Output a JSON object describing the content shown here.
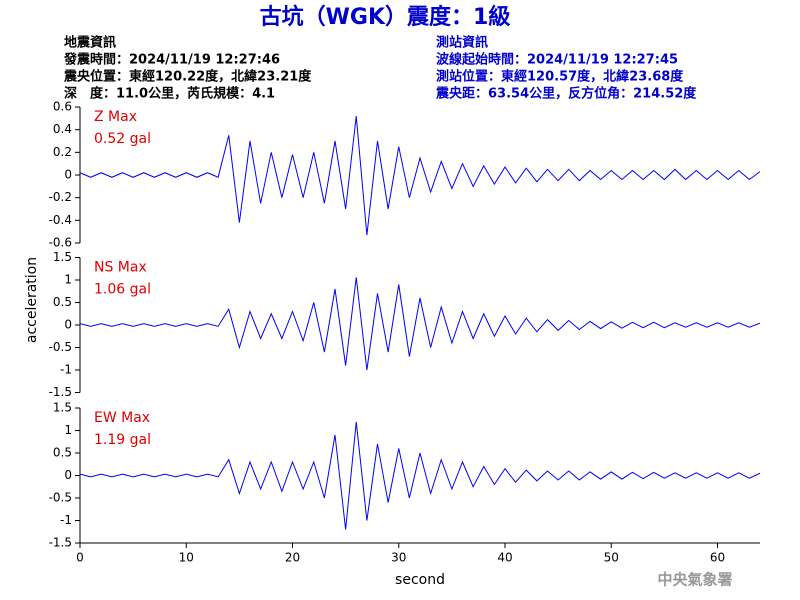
{
  "header": {
    "title": "古坑（WGK）震度：1級",
    "left": [
      "地震資訊",
      "發震時間：2024/11/19 12:27:46",
      "震央位置：東經120.22度，北緯23.21度",
      "深　度：11.0公里，芮氏規模：4.1"
    ],
    "right": [
      "測站資訊",
      "波線起始時間：2024/11/19 12:27:45",
      "測站位置：東經120.57度，北緯23.68度",
      "震央距：63.54公里，反方位角：214.52度"
    ],
    "footer": "中央氣象署"
  },
  "chart_data": [
    {
      "type": "line",
      "annotation": "Z Max",
      "max_label": "0.52 gal",
      "color": "#0000ff",
      "x": [
        0,
        1,
        2,
        3,
        4,
        5,
        6,
        7,
        8,
        9,
        10,
        11,
        12,
        13,
        14,
        15,
        16,
        17,
        18,
        19,
        20,
        21,
        22,
        23,
        24,
        25,
        26,
        27,
        28,
        29,
        30,
        31,
        32,
        33,
        34,
        35,
        36,
        37,
        38,
        39,
        40,
        41,
        42,
        43,
        44,
        45,
        46,
        47,
        48,
        49,
        50,
        51,
        52,
        53,
        54,
        55,
        56,
        57,
        58,
        59,
        60,
        61,
        62,
        63,
        64
      ],
      "values": [
        0.02,
        -0.02,
        0.02,
        -0.02,
        0.02,
        -0.02,
        0.02,
        -0.02,
        0.02,
        -0.02,
        0.02,
        -0.02,
        0.02,
        -0.02,
        0.35,
        -0.42,
        0.3,
        -0.25,
        0.2,
        -0.2,
        0.18,
        -0.2,
        0.2,
        -0.25,
        0.3,
        -0.3,
        0.52,
        -0.53,
        0.3,
        -0.3,
        0.25,
        -0.2,
        0.15,
        -0.15,
        0.12,
        -0.12,
        0.1,
        -0.1,
        0.08,
        -0.08,
        0.07,
        -0.07,
        0.06,
        -0.06,
        0.05,
        -0.05,
        0.05,
        -0.05,
        0.04,
        -0.04,
        0.04,
        -0.04,
        0.04,
        -0.04,
        0.04,
        -0.04,
        0.05,
        -0.04,
        0.04,
        -0.04,
        0.04,
        -0.04,
        0.04,
        -0.04,
        0.03
      ],
      "xlim": [
        0,
        64
      ],
      "ylim": [
        -0.6,
        0.6
      ],
      "yticks": [
        -0.6,
        -0.4,
        -0.2,
        0,
        0.2,
        0.4,
        0.6
      ]
    },
    {
      "type": "line",
      "annotation": "NS Max",
      "max_label": "1.06 gal",
      "color": "#0000ff",
      "ylabel": "acceleration",
      "x": [
        0,
        1,
        2,
        3,
        4,
        5,
        6,
        7,
        8,
        9,
        10,
        11,
        12,
        13,
        14,
        15,
        16,
        17,
        18,
        19,
        20,
        21,
        22,
        23,
        24,
        25,
        26,
        27,
        28,
        29,
        30,
        31,
        32,
        33,
        34,
        35,
        36,
        37,
        38,
        39,
        40,
        41,
        42,
        43,
        44,
        45,
        46,
        47,
        48,
        49,
        50,
        51,
        52,
        53,
        54,
        55,
        56,
        57,
        58,
        59,
        60,
        61,
        62,
        63,
        64
      ],
      "values": [
        0.03,
        -0.03,
        0.03,
        -0.03,
        0.03,
        -0.03,
        0.03,
        -0.03,
        0.03,
        -0.03,
        0.03,
        -0.03,
        0.03,
        -0.03,
        0.35,
        -0.5,
        0.3,
        -0.3,
        0.25,
        -0.3,
        0.3,
        -0.35,
        0.5,
        -0.6,
        0.8,
        -0.9,
        1.06,
        -1.0,
        0.7,
        -0.6,
        0.9,
        -0.7,
        0.6,
        -0.5,
        0.4,
        -0.4,
        0.3,
        -0.3,
        0.25,
        -0.25,
        0.2,
        -0.2,
        0.15,
        -0.15,
        0.12,
        -0.12,
        0.1,
        -0.1,
        0.08,
        -0.08,
        0.07,
        -0.07,
        0.06,
        -0.06,
        0.06,
        -0.06,
        0.05,
        -0.05,
        0.05,
        -0.05,
        0.05,
        -0.05,
        0.05,
        -0.05,
        0.04
      ],
      "xlim": [
        0,
        64
      ],
      "ylim": [
        -1.5,
        1.5
      ],
      "yticks": [
        -1.5,
        -1,
        -0.5,
        0,
        0.5,
        1,
        1.5
      ]
    },
    {
      "type": "line",
      "annotation": "EW Max",
      "max_label": "1.19 gal",
      "color": "#0000ff",
      "xlabel": "second",
      "x": [
        0,
        1,
        2,
        3,
        4,
        5,
        6,
        7,
        8,
        9,
        10,
        11,
        12,
        13,
        14,
        15,
        16,
        17,
        18,
        19,
        20,
        21,
        22,
        23,
        24,
        25,
        26,
        27,
        28,
        29,
        30,
        31,
        32,
        33,
        34,
        35,
        36,
        37,
        38,
        39,
        40,
        41,
        42,
        43,
        44,
        45,
        46,
        47,
        48,
        49,
        50,
        51,
        52,
        53,
        54,
        55,
        56,
        57,
        58,
        59,
        60,
        61,
        62,
        63,
        64
      ],
      "values": [
        0.03,
        -0.03,
        0.03,
        -0.03,
        0.03,
        -0.03,
        0.03,
        -0.03,
        0.03,
        -0.03,
        0.03,
        -0.03,
        0.03,
        -0.03,
        0.35,
        -0.4,
        0.3,
        -0.3,
        0.3,
        -0.35,
        0.3,
        -0.3,
        0.3,
        -0.5,
        0.9,
        -1.2,
        1.19,
        -1.0,
        0.7,
        -0.6,
        0.6,
        -0.5,
        0.5,
        -0.4,
        0.35,
        -0.3,
        0.3,
        -0.25,
        0.2,
        -0.2,
        0.15,
        -0.15,
        0.12,
        -0.12,
        0.1,
        -0.1,
        0.1,
        -0.1,
        0.08,
        -0.08,
        0.08,
        -0.08,
        0.07,
        -0.07,
        0.07,
        -0.06,
        0.06,
        -0.06,
        0.06,
        -0.06,
        0.06,
        -0.06,
        0.06,
        -0.06,
        0.05
      ],
      "xlim": [
        0,
        64
      ],
      "ylim": [
        -1.5,
        1.5
      ],
      "yticks": [
        -1.5,
        -1,
        -0.5,
        0,
        0.5,
        1,
        1.5
      ],
      "xticks": [
        0,
        10,
        20,
        30,
        40,
        50,
        60
      ]
    }
  ]
}
